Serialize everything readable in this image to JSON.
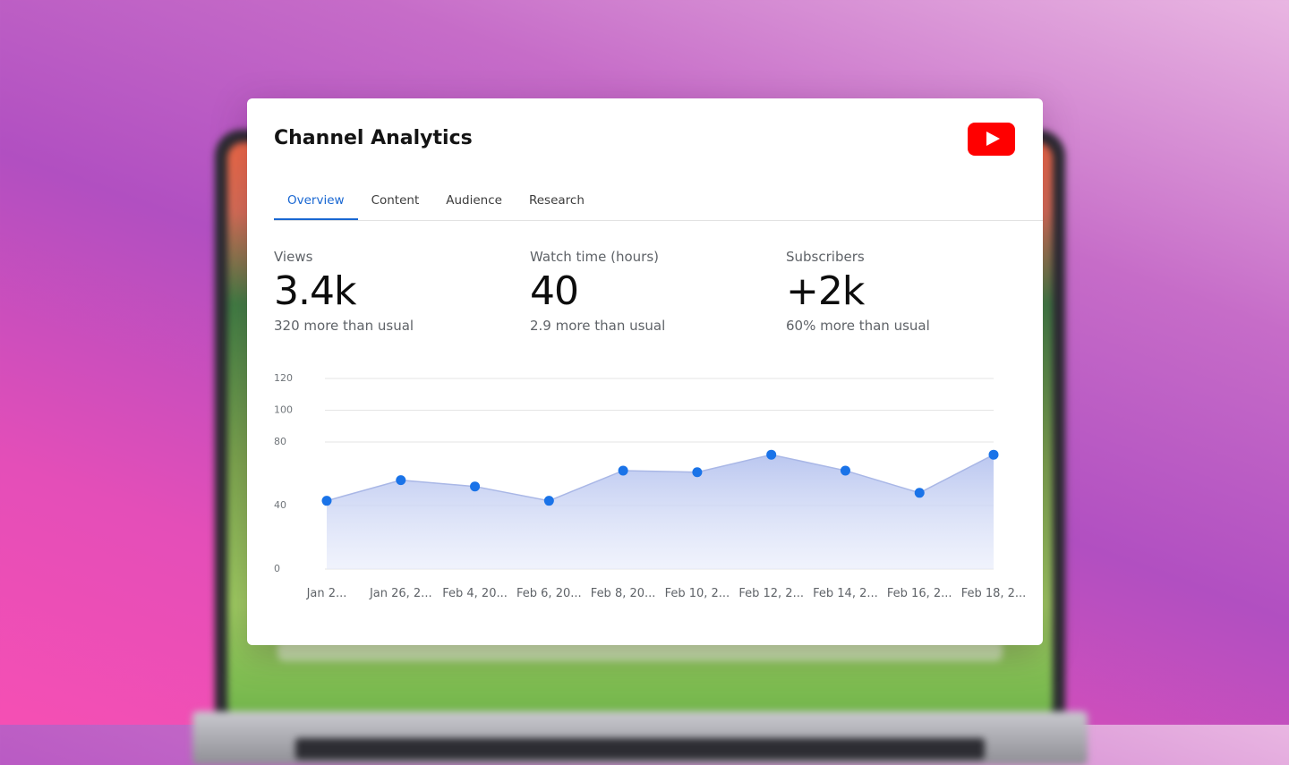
{
  "card": {
    "title": "Channel Analytics",
    "logo_icon": "youtube-logo-icon"
  },
  "tabs": [
    {
      "label": "Overview",
      "active": true
    },
    {
      "label": "Content",
      "active": false
    },
    {
      "label": "Audience",
      "active": false
    },
    {
      "label": "Research",
      "active": false
    }
  ],
  "metrics": [
    {
      "label": "Views",
      "value": "3.4k",
      "delta": "320 more than usual"
    },
    {
      "label": "Watch time (hours)",
      "value": "40",
      "delta": "2.9 more than usual"
    },
    {
      "label": "Subscribers",
      "value": "+2k",
      "delta": "60% more than usual"
    }
  ],
  "colors": {
    "accent": "#1967d2",
    "point": "#1a73e8",
    "youtube_red": "#ff0000"
  },
  "chart_data": {
    "type": "area",
    "categories": [
      "Jan 2...",
      "Jan 26, 2...",
      "Feb 4, 20...",
      "Feb 6, 20...",
      "Feb 8, 20...",
      "Feb 10, 2...",
      "Feb 12, 2...",
      "Feb 14, 2...",
      "Feb 16, 2...",
      "Feb 18, 2..."
    ],
    "series": [
      {
        "values": [
          43,
          56,
          52,
          43,
          62,
          61,
          72,
          62,
          48,
          72
        ]
      }
    ],
    "yticks": [
      0,
      40,
      80,
      100,
      120
    ],
    "ylim": [
      0,
      120
    ],
    "grid": true,
    "markers": true
  }
}
